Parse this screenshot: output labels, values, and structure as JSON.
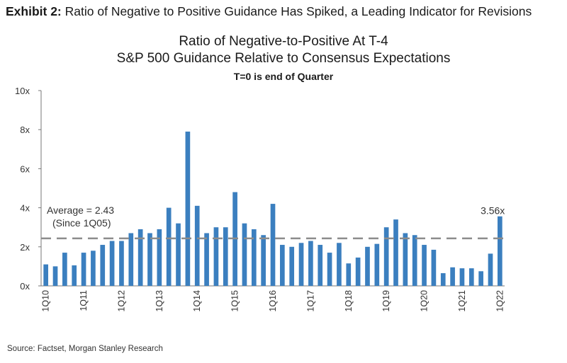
{
  "header": {
    "exhibit_label": "Exhibit 2:",
    "exhibit_title": "Ratio of Negative to Positive Guidance Has Spiked, a Leading Indicator for Revisions"
  },
  "chart_data": {
    "type": "bar",
    "title": "Ratio of Negative-to-Positive  At T-4",
    "subtitle": "S&P 500 Guidance Relative to Consensus  Expectations",
    "note": "T=0 is end of Quarter",
    "xlabel": "",
    "ylabel": "",
    "ylim": [
      0,
      10
    ],
    "y_ticks": [
      {
        "value": 0,
        "label": "0x"
      },
      {
        "value": 2,
        "label": "2x"
      },
      {
        "value": 4,
        "label": "4x"
      },
      {
        "value": 6,
        "label": "6x"
      },
      {
        "value": 8,
        "label": "8x"
      },
      {
        "value": 10,
        "label": "10x"
      }
    ],
    "categories": [
      "1Q10",
      "2Q10",
      "3Q10",
      "4Q10",
      "1Q11",
      "2Q11",
      "3Q11",
      "4Q11",
      "1Q12",
      "2Q12",
      "3Q12",
      "4Q12",
      "1Q13",
      "2Q13",
      "3Q13",
      "4Q13",
      "1Q14",
      "2Q14",
      "3Q14",
      "4Q14",
      "1Q15",
      "2Q15",
      "3Q15",
      "4Q15",
      "1Q16",
      "2Q16",
      "3Q16",
      "4Q16",
      "1Q17",
      "2Q17",
      "3Q17",
      "4Q17",
      "1Q18",
      "2Q18",
      "3Q18",
      "4Q18",
      "1Q19",
      "2Q19",
      "3Q19",
      "4Q19",
      "1Q20",
      "2Q20",
      "3Q20",
      "4Q20",
      "1Q21",
      "2Q21",
      "3Q21",
      "4Q21",
      "1Q22"
    ],
    "x_tick_labels": [
      "1Q10",
      "1Q11",
      "1Q12",
      "1Q13",
      "1Q14",
      "1Q15",
      "1Q16",
      "1Q17",
      "1Q18",
      "1Q19",
      "1Q20",
      "1Q21",
      "1Q22"
    ],
    "values": [
      1.1,
      1.0,
      1.7,
      1.05,
      1.7,
      1.8,
      2.1,
      2.3,
      2.3,
      2.7,
      2.9,
      2.7,
      2.9,
      4.0,
      3.2,
      7.9,
      4.1,
      2.7,
      3.0,
      3.0,
      4.8,
      3.2,
      2.9,
      2.6,
      4.2,
      2.1,
      2.0,
      2.2,
      2.3,
      2.1,
      1.7,
      2.2,
      1.15,
      1.45,
      2.0,
      2.15,
      3.0,
      3.4,
      2.7,
      2.6,
      2.1,
      1.85,
      0.65,
      0.95,
      0.9,
      0.9,
      0.75,
      1.65,
      3.56
    ],
    "average": {
      "value": 2.43,
      "label_line1": "Average = 2.43",
      "label_line2": "(Since 1Q05)"
    },
    "last_value_label": "3.56x",
    "series_color": "#3b7fbf",
    "average_line_color": "#8c8c8c"
  },
  "footer": {
    "source": "Source: Factset, Morgan Stanley Research"
  }
}
